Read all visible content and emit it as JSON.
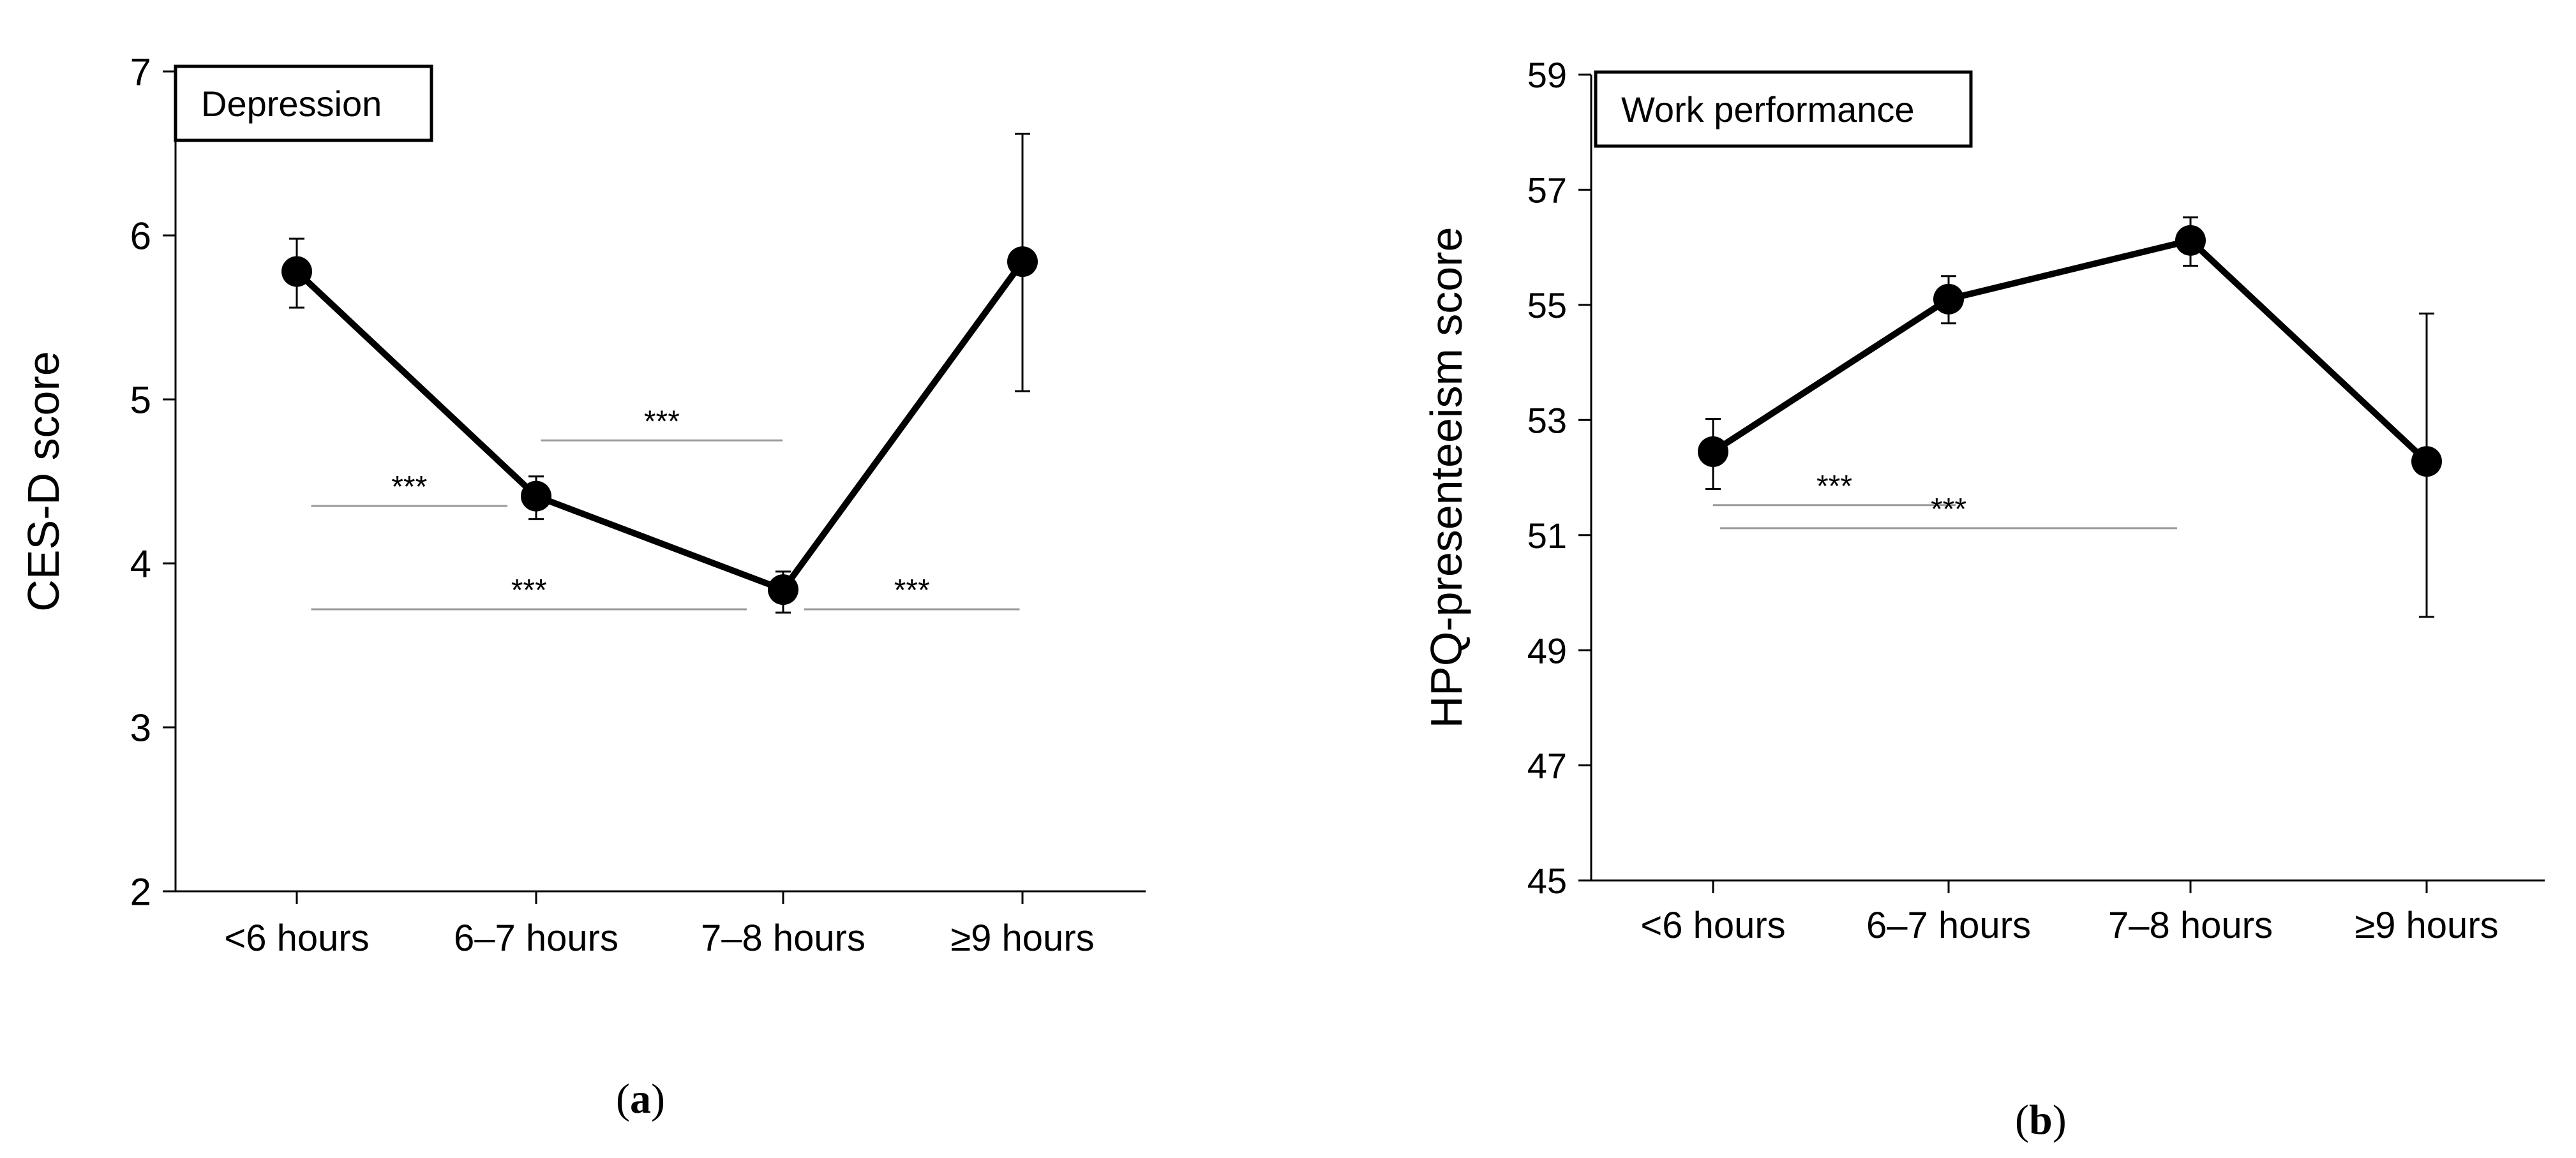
{
  "chart_data": [
    {
      "type": "line",
      "title": "Depression",
      "xlabel": "",
      "ylabel": "CES-D score",
      "categories": [
        "<6 hours",
        "6–7 hours",
        "7–8 hours",
        "≥9 hours"
      ],
      "ylim": [
        2,
        7
      ],
      "yticks": [
        "2",
        "3",
        "4",
        "5",
        "6",
        "7"
      ],
      "series": [
        {
          "name": "CES-D score",
          "values": [
            5.78,
            4.41,
            3.84,
            5.84
          ],
          "error_low": [
            5.56,
            4.27,
            3.7,
            5.05
          ],
          "error_high": [
            5.98,
            4.53,
            3.95,
            6.62
          ]
        }
      ],
      "significance": [
        {
          "label": "***",
          "from": 0.06,
          "to": 0.88,
          "y": 4.35
        },
        {
          "label": "***",
          "from": 1.02,
          "to": 2.03,
          "y": 4.75
        },
        {
          "label": "***",
          "from": 0.06,
          "to": 1.88,
          "y": 3.72
        },
        {
          "label": "***",
          "from": 2.12,
          "to": 3.02,
          "y": 3.72
        }
      ],
      "panel_label": {
        "open": "(",
        "letter": "a",
        "close": ")"
      }
    },
    {
      "type": "line",
      "title": "Work performance",
      "xlabel": "",
      "ylabel": "HPQ-presenteeism score",
      "categories": [
        "<6 hours",
        "6–7 hours",
        "7–8 hours",
        "≥9 hours"
      ],
      "ylim": [
        45,
        59
      ],
      "yticks": [
        "45",
        "47",
        "49",
        "51",
        "53",
        "55",
        "57",
        "59"
      ],
      "series": [
        {
          "name": "HPQ-presenteeism score",
          "values": [
            52.45,
            55.1,
            56.12,
            52.28
          ],
          "error_low": [
            51.8,
            54.68,
            55.68,
            49.58
          ],
          "error_high": [
            53.02,
            55.5,
            56.52,
            54.85
          ]
        }
      ],
      "significance": [
        {
          "label": "***",
          "from": 0.0,
          "to": 1.03,
          "y": 51.52
        },
        {
          "label": "***",
          "from": 0.03,
          "to": 1.97,
          "y": 51.12
        }
      ],
      "panel_label": {
        "open": "(",
        "letter": "b",
        "close": ")"
      }
    }
  ]
}
